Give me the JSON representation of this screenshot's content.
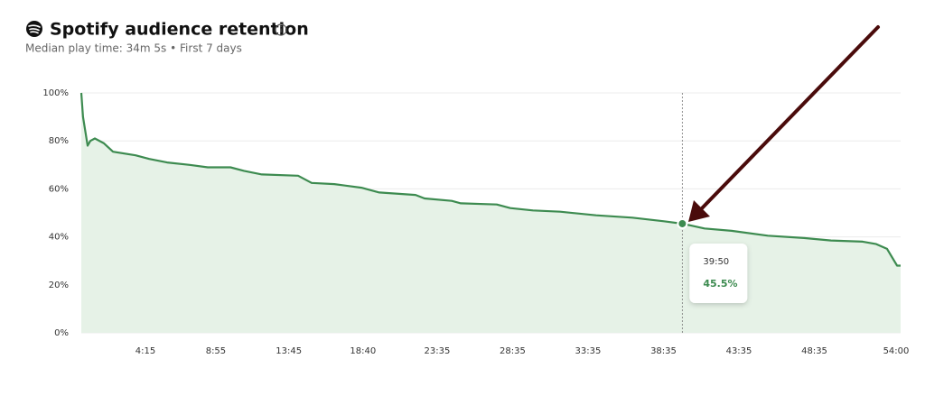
{
  "chart_data": {
    "type": "line",
    "title": "Spotify audience retention",
    "subtitle": "Median play time: 34m 5s • First 7 days",
    "x": [
      0,
      7,
      25,
      36,
      54,
      90,
      126,
      216,
      270,
      341,
      431,
      503,
      593,
      647,
      718,
      862,
      916,
      1006,
      1114,
      1185,
      1329,
      1365,
      1473,
      1509,
      1652,
      1706,
      1796,
      1904,
      2047,
      2191,
      2317,
      2390,
      2478,
      2586,
      2730,
      2874,
      2981,
      3107,
      3161,
      3204,
      3244,
      3258
    ],
    "values": [
      100,
      90,
      78,
      80,
      81,
      79,
      75.5,
      74,
      72.5,
      71,
      70,
      69,
      69,
      67.5,
      66,
      65.5,
      62.5,
      62,
      60.5,
      58.5,
      57.5,
      56,
      55,
      54,
      53.5,
      52,
      51,
      50.5,
      49,
      48,
      46.5,
      45.5,
      43.5,
      42.5,
      40.5,
      39.5,
      38.5,
      38,
      37,
      35,
      28,
      28
    ],
    "color": "#3d8b50",
    "fill": "#e6f2e7",
    "xlim": [
      0,
      3258
    ],
    "xticks": [
      {
        "value": 255,
        "label": "4:15"
      },
      {
        "value": 535,
        "label": "8:55"
      },
      {
        "value": 825,
        "label": "13:45"
      },
      {
        "value": 1120,
        "label": "18:40"
      },
      {
        "value": 1415,
        "label": "23:35"
      },
      {
        "value": 1715,
        "label": "28:35"
      },
      {
        "value": 2015,
        "label": "33:35"
      },
      {
        "value": 2315,
        "label": "38:35"
      },
      {
        "value": 2615,
        "label": "43:35"
      },
      {
        "value": 2915,
        "label": "48:35"
      },
      {
        "value": 3240,
        "label": "54:00"
      }
    ],
    "ylim": [
      0,
      100
    ],
    "yticks": [
      {
        "value": 0,
        "label": "0%"
      },
      {
        "value": 20,
        "label": "20%"
      },
      {
        "value": 40,
        "label": "40%"
      },
      {
        "value": 60,
        "label": "60%"
      },
      {
        "value": 80,
        "label": "80%"
      },
      {
        "value": 100,
        "label": "100%"
      }
    ],
    "grid": true,
    "tooltip": {
      "x": 2390,
      "x_label": "39:50",
      "value": 45.5,
      "value_label": "45.5%"
    }
  }
}
